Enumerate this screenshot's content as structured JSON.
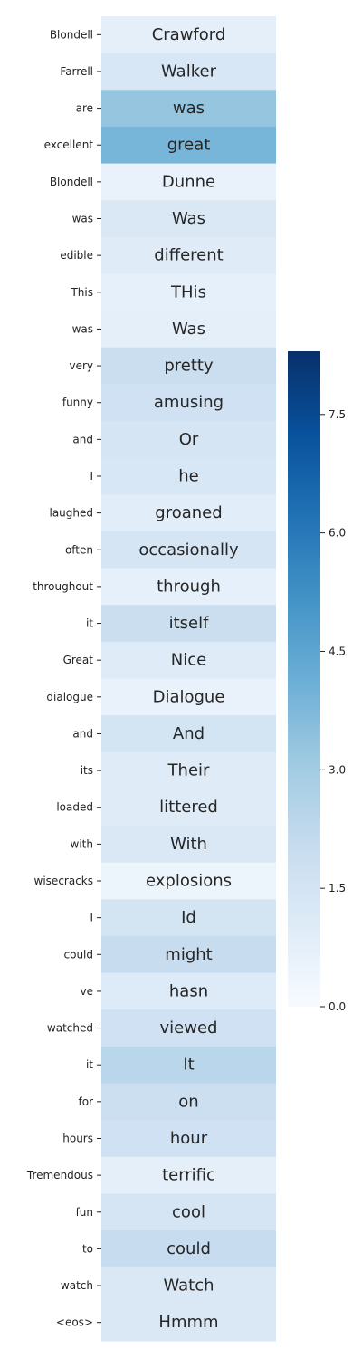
{
  "chart_data": {
    "type": "heatmap",
    "colormap": "Blues",
    "row_labels": [
      "Blondell",
      "Farrell",
      "are",
      "excellent",
      "Blondell",
      "was",
      "edible",
      "This",
      "was",
      "very",
      "funny",
      "and",
      "I",
      "laughed",
      "often",
      "throughout",
      "it",
      "Great",
      "dialogue",
      "and",
      "its",
      "loaded",
      "with",
      "wisecracks",
      "I",
      "could",
      "ve",
      "watched",
      "it",
      "for",
      "hours",
      "Tremendous",
      "fun",
      "to",
      "watch",
      "<eos>"
    ],
    "cell_labels": [
      "Crawford",
      "Walker",
      "was",
      "great",
      "Dunne",
      "Was",
      "different",
      "THis",
      "Was",
      "pretty",
      "amusing",
      "Or",
      "he",
      "groaned",
      "occasionally",
      "through",
      "itself",
      "Nice",
      "Dialogue",
      "And",
      "Their",
      "littered",
      "With",
      "explosions",
      "Id",
      "might",
      "hasn",
      "viewed",
      "It",
      "on",
      "hour",
      "terrific",
      "cool",
      "could",
      "Watch",
      "Hmmm"
    ],
    "values": [
      0.8,
      1.3,
      3.3,
      3.9,
      0.6,
      1.2,
      1.0,
      0.7,
      0.8,
      1.9,
      1.7,
      1.4,
      1.3,
      0.9,
      1.4,
      0.7,
      1.9,
      1.0,
      0.6,
      1.5,
      1.0,
      1.0,
      1.2,
      0.4,
      1.5,
      2.0,
      1.1,
      1.7,
      2.4,
      1.8,
      1.7,
      0.8,
      1.4,
      2.0,
      1.2,
      1.2
    ],
    "colorbar": {
      "range": [
        0,
        8.3
      ],
      "ticks": [
        0.0,
        1.5,
        3.0,
        4.5,
        6.0,
        7.5
      ],
      "tick_labels": [
        "0.0",
        "1.5",
        "3.0",
        "4.5",
        "6.0",
        "7.5"
      ]
    }
  }
}
